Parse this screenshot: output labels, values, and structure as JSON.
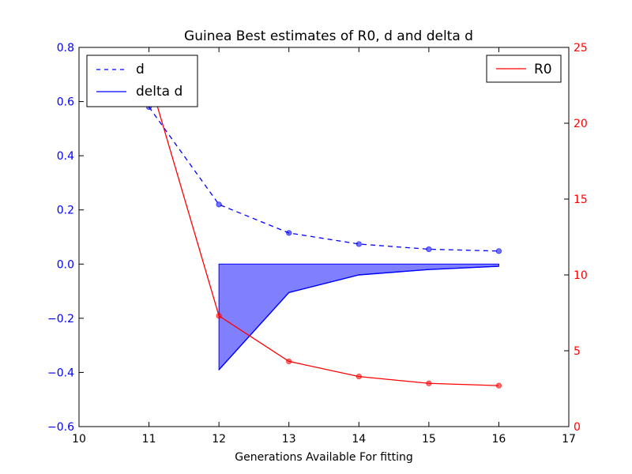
{
  "chart_data": {
    "type": "line",
    "title": "Guinea Best estimates of R0, d and delta d",
    "xlabel": "Generations Available For fitting",
    "xlim": [
      10,
      17
    ],
    "xticks": [
      "10",
      "11",
      "12",
      "13",
      "14",
      "15",
      "16",
      "17"
    ],
    "y_left": {
      "lim": [
        -0.6,
        0.8
      ],
      "ticks": [
        "−0.6",
        "−0.4",
        "−0.2",
        "0.0",
        "0.2",
        "0.4",
        "0.6",
        "0.8"
      ],
      "tick_values": [
        -0.6,
        -0.4,
        -0.2,
        0.0,
        0.2,
        0.4,
        0.6,
        0.8
      ],
      "color": "#0000ff"
    },
    "y_right": {
      "lim": [
        0,
        25
      ],
      "ticks": [
        "0",
        "5",
        "10",
        "15",
        "20",
        "25"
      ],
      "tick_values": [
        0,
        5,
        10,
        15,
        20,
        25
      ],
      "color": "#ff0000"
    },
    "series": [
      {
        "name": "d",
        "axis": "left",
        "style": "dashed",
        "color": "#0000ff",
        "x": [
          11,
          12,
          13,
          14,
          15,
          16
        ],
        "y": [
          0.58,
          0.22,
          0.115,
          0.074,
          0.055,
          0.048
        ]
      },
      {
        "name": "delta d",
        "axis": "left",
        "style": "fill-to-zero",
        "color": "#0000ff",
        "fill": "#8080ff",
        "x": [
          12,
          13,
          14,
          15,
          16
        ],
        "y": [
          -0.39,
          -0.105,
          -0.04,
          -0.02,
          -0.008
        ]
      },
      {
        "name": "R0",
        "axis": "right",
        "style": "solid",
        "color": "#ff0000",
        "x": [
          11,
          12,
          13,
          14,
          15,
          16
        ],
        "y": [
          23.0,
          7.3,
          4.3,
          3.3,
          2.85,
          2.7
        ]
      }
    ],
    "legend_left": [
      "d",
      "delta d"
    ],
    "legend_right": [
      "R0"
    ],
    "grid": false
  }
}
